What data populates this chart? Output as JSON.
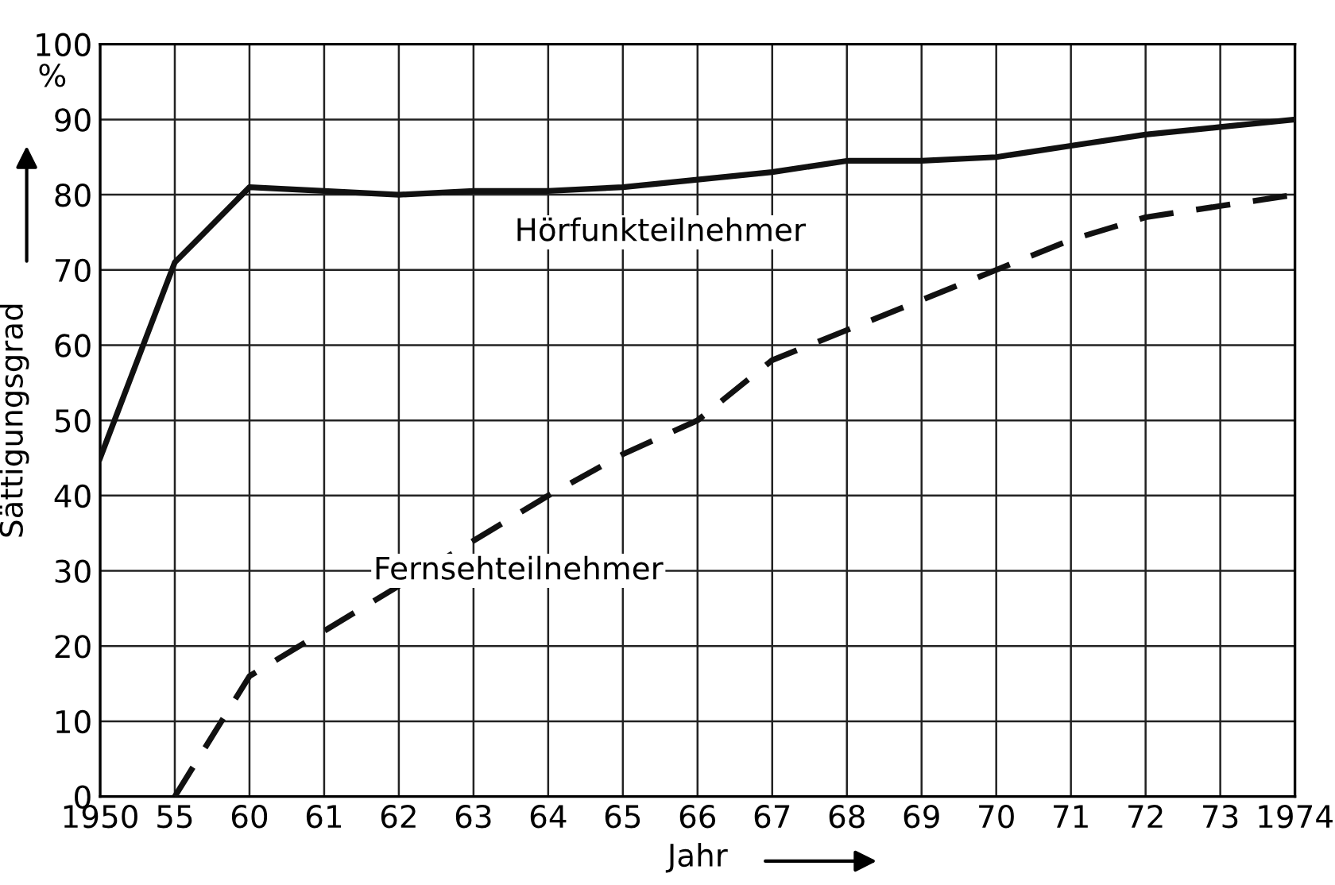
{
  "chart_data": {
    "type": "line",
    "xlabel": "Jahr",
    "ylabel": "Sättigungsgrad",
    "annotations": [
      "%"
    ],
    "categories": [
      "1950",
      "55",
      "60",
      "61",
      "62",
      "63",
      "64",
      "65",
      "66",
      "67",
      "68",
      "69",
      "70",
      "71",
      "72",
      "73",
      "1974"
    ],
    "series": [
      {
        "name": "Hörfunkteilnehmer",
        "color": "#111111",
        "line_style": "solid",
        "values": [
          45,
          71,
          81,
          80.5,
          80,
          80.5,
          80.5,
          81,
          82,
          83,
          84.5,
          84.5,
          85,
          86.5,
          88,
          89,
          90
        ]
      },
      {
        "name": "Fernsehteilnehmer",
        "color": "#111111",
        "line_style": "dashed",
        "values": [
          null,
          0,
          16,
          22,
          28,
          34,
          40,
          45.5,
          50,
          58,
          62,
          66,
          70,
          74,
          77,
          78.5,
          80
        ]
      }
    ],
    "ylim": [
      0,
      100
    ],
    "yticks": [
      0,
      10,
      20,
      30,
      40,
      50,
      60,
      70,
      80,
      90,
      100
    ],
    "grid": true,
    "legend": false,
    "marker": "none"
  }
}
